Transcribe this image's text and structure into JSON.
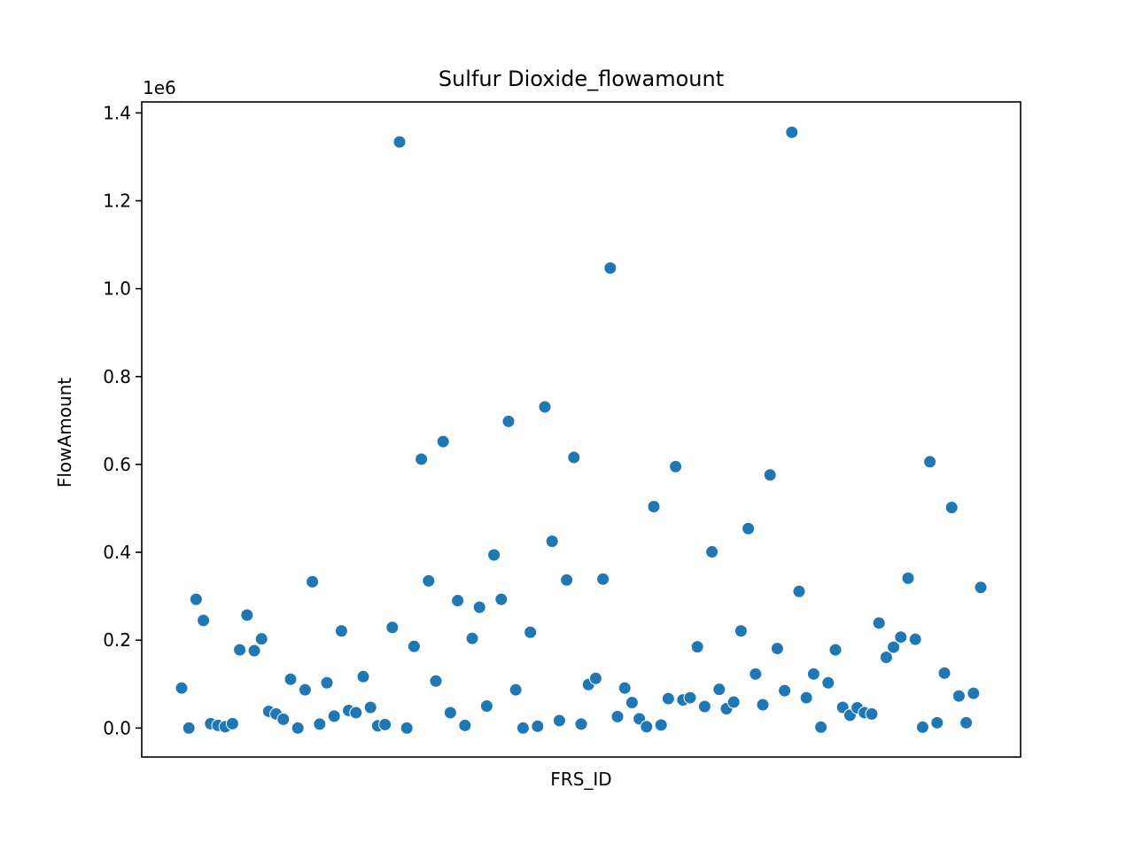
{
  "chart_data": {
    "type": "scatter",
    "title": "Sulfur Dioxide_flowamount",
    "xlabel": "FRS_ID",
    "ylabel": "FlowAmount",
    "y_offset_label": "1e6",
    "y_scale": 1000000,
    "ylim": [
      -66000,
      1425000
    ],
    "y_ticks": [
      0,
      200000,
      400000,
      600000,
      800000,
      1000000,
      1200000,
      1400000
    ],
    "y_tick_labels": [
      "0.0",
      "0.2",
      "0.4",
      "0.6",
      "0.8",
      "1.0",
      "1.2",
      "1.4"
    ],
    "x_ticks_shown": false,
    "grid": false,
    "legend": "none",
    "marker_color": "#1f77b4",
    "series": [
      {
        "values": [
          91000,
          0,
          293000,
          245000,
          10000,
          6000,
          3000,
          10000,
          178000,
          257000,
          176000,
          203000,
          38000,
          32000,
          20000,
          111000,
          0,
          87000,
          333000,
          9000,
          103000,
          27000,
          221000,
          40000,
          35000,
          117000,
          47000,
          5000,
          8000,
          229000,
          1334000,
          0,
          186000,
          612000,
          335000,
          107000,
          652000,
          35000,
          290000,
          6000,
          204000,
          275000,
          50000,
          394000,
          293000,
          698000,
          87000,
          0,
          218000,
          4000,
          731000,
          425000,
          17000,
          337000,
          616000,
          9000,
          99000,
          113000,
          339000,
          1047000,
          26000,
          91000,
          58000,
          21000,
          3000,
          504000,
          7000,
          67000,
          595000,
          64000,
          69000,
          185000,
          49000,
          401000,
          88000,
          44000,
          59000,
          221000,
          454000,
          123000,
          53000,
          576000,
          181000,
          85000,
          1356000,
          311000,
          69000,
          123000,
          2000,
          103000,
          178000,
          47000,
          29000,
          46000,
          35000,
          32000,
          239000,
          161000,
          184000,
          207000,
          341000,
          202000,
          2000,
          606000,
          12000,
          125000,
          502000,
          73000,
          12000,
          79000,
          320000
        ]
      }
    ]
  }
}
